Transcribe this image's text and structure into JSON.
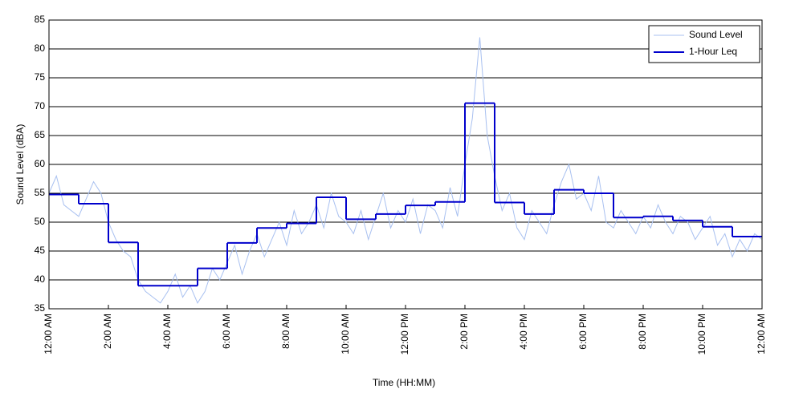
{
  "chart_data": {
    "type": "line",
    "x_label": "Time (HH:MM)",
    "y_label": "Sound Level (dBA)",
    "xlim": [
      0,
      24
    ],
    "ylim": [
      35,
      85
    ],
    "yticks": [
      35,
      40,
      45,
      50,
      55,
      60,
      65,
      70,
      75,
      80,
      85
    ],
    "xticks": [
      {
        "value": 0,
        "label": "12:00 AM"
      },
      {
        "value": 2,
        "label": "2:00 AM"
      },
      {
        "value": 4,
        "label": "4:00 AM"
      },
      {
        "value": 6,
        "label": "6:00 AM"
      },
      {
        "value": 8,
        "label": "8:00 AM"
      },
      {
        "value": 10,
        "label": "10:00 AM"
      },
      {
        "value": 12,
        "label": "12:00 PM"
      },
      {
        "value": 14,
        "label": "2:00 PM"
      },
      {
        "value": 16,
        "label": "4:00 PM"
      },
      {
        "value": 18,
        "label": "6:00 PM"
      },
      {
        "value": 20,
        "label": "8:00 PM"
      },
      {
        "value": 22,
        "label": "10:00 PM"
      },
      {
        "value": 24,
        "label": "12:00 AM"
      }
    ],
    "grid": true,
    "legend": "upper right",
    "series": [
      {
        "name": "Sound Level",
        "color": "#a8c0f0",
        "style": "line",
        "x": [
          0,
          0.25,
          0.5,
          0.75,
          1,
          1.25,
          1.5,
          1.75,
          2,
          2.25,
          2.5,
          2.75,
          3,
          3.25,
          3.5,
          3.75,
          4,
          4.25,
          4.5,
          4.75,
          5,
          5.25,
          5.5,
          5.75,
          6,
          6.25,
          6.5,
          6.75,
          7,
          7.25,
          7.5,
          7.75,
          8,
          8.25,
          8.5,
          8.75,
          9,
          9.25,
          9.5,
          9.75,
          10,
          10.25,
          10.5,
          10.75,
          11,
          11.25,
          11.5,
          11.75,
          12,
          12.25,
          12.5,
          12.75,
          13,
          13.25,
          13.5,
          13.75,
          14,
          14.25,
          14.5,
          14.75,
          15,
          15.25,
          15.5,
          15.75,
          16,
          16.25,
          16.5,
          16.75,
          17,
          17.25,
          17.5,
          17.75,
          18,
          18.25,
          18.5,
          18.75,
          19,
          19.25,
          19.5,
          19.75,
          20,
          20.25,
          20.5,
          20.75,
          21,
          21.25,
          21.5,
          21.75,
          22,
          22.25,
          22.5,
          22.75,
          23,
          23.25,
          23.5,
          23.75,
          24
        ],
        "values": [
          55,
          58,
          53,
          52,
          51,
          54,
          57,
          55,
          50,
          47,
          45,
          44,
          40,
          38,
          37,
          36,
          38,
          41,
          37,
          39,
          36,
          38,
          42,
          40,
          43,
          46,
          41,
          45,
          48,
          44,
          47,
          50,
          46,
          52,
          48,
          50,
          53,
          49,
          55,
          51,
          50,
          48,
          52,
          47,
          51,
          55,
          49,
          52,
          50,
          54,
          48,
          53,
          52,
          49,
          56,
          51,
          60,
          68,
          82,
          65,
          58,
          52,
          55,
          49,
          47,
          52,
          50,
          48,
          53,
          57,
          60,
          54,
          55,
          52,
          58,
          50,
          49,
          52,
          50,
          48,
          51,
          49,
          53,
          50,
          48,
          51,
          50,
          47,
          49,
          51,
          46,
          48,
          44,
          47,
          45,
          48,
          47
        ]
      },
      {
        "name": "1-Hour Leq",
        "color": "#0000cc",
        "style": "step",
        "x": [
          0,
          1,
          2,
          3,
          4,
          5,
          6,
          7,
          8,
          9,
          10,
          11,
          12,
          13,
          14,
          15,
          16,
          17,
          18,
          19,
          20,
          21,
          22,
          23
        ],
        "values": [
          54.8,
          53.2,
          46.5,
          39,
          39,
          42,
          46.4,
          49,
          49.8,
          54.3,
          50.5,
          51.4,
          52.9,
          53.5,
          70.6,
          53.4,
          51.4,
          55.6,
          55,
          50.8,
          51,
          50.3,
          49.2,
          47.5
        ]
      }
    ]
  }
}
